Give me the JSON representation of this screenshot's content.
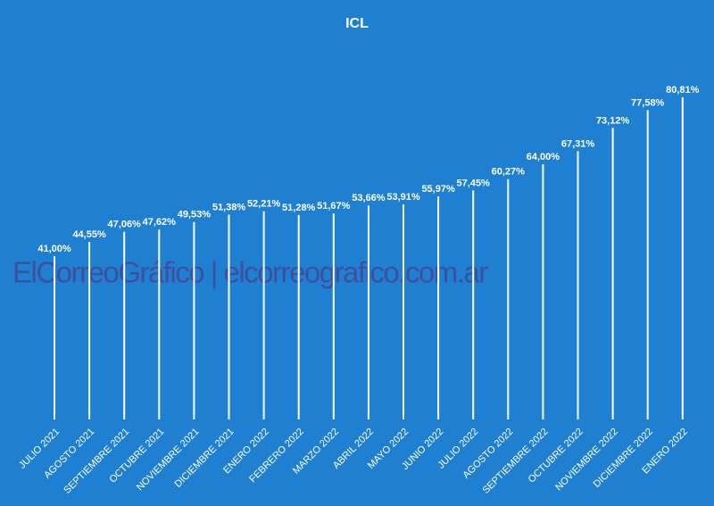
{
  "chart_data": {
    "type": "bar",
    "title": "ICL",
    "watermark": "ElCorreoGráfico | elcorreografico.com.ar",
    "categories": [
      "JULIO 2021",
      "AGOSTO 2021",
      "SEPTIEMBRE 2021",
      "OCTUBRE 2021",
      "NOVIEMBRE 2021",
      "DICIEMBRE 2021",
      "ENERO 2022",
      "FEBRERO 2022",
      "MARZO 2022",
      "ABRIL 2022",
      "MAYO 2022",
      "JUNIO 2022",
      "JULIO 2022",
      "AGOSTO 2022",
      "SEPTIEMBRE 2022",
      "OCTUBRE 2022",
      "NOVIEMBRE 2022",
      "DICIEMBRE 2022",
      "ENERO 2022"
    ],
    "values": [
      41.0,
      44.55,
      47.06,
      47.62,
      49.53,
      51.38,
      52.21,
      51.28,
      51.67,
      53.66,
      53.91,
      55.97,
      57.45,
      60.27,
      64.0,
      67.31,
      73.12,
      77.58,
      80.81
    ],
    "value_labels": [
      "41,00%",
      "44,55%",
      "47,06%",
      "47,62%",
      "49,53%",
      "51,38%",
      "52,21%",
      "51,28%",
      "51,67%",
      "53,66%",
      "53,91%",
      "55,97%",
      "57,45%",
      "60,27%",
      "64,00%",
      "67,31%",
      "73,12%",
      "77,58%",
      "80,81%"
    ],
    "color": "#ffffff",
    "ylim": [
      0,
      90
    ]
  }
}
